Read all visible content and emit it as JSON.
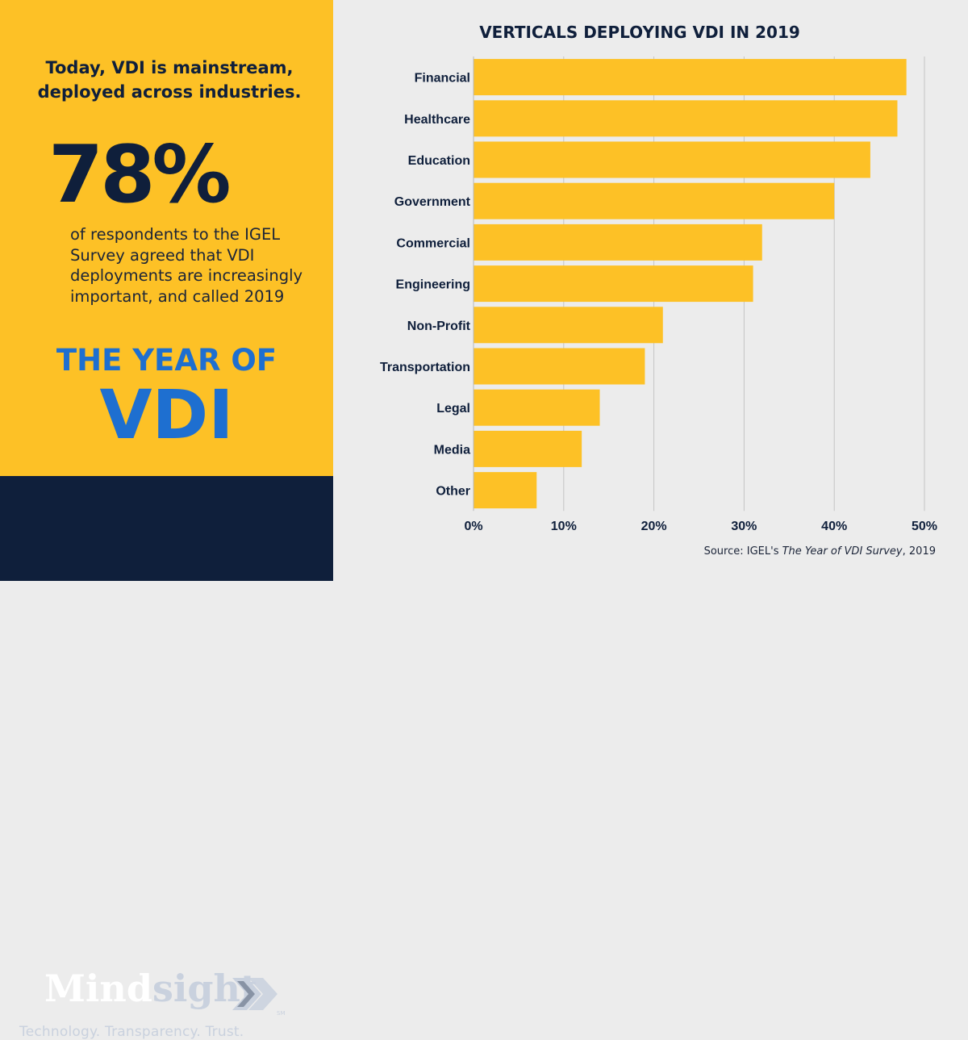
{
  "left_panel": {
    "intro": "Today, VDI is mainstream, deployed across industries.",
    "stat": "78%",
    "description": "of respondents to the IGEL Survey agreed that VDI deployments are increasingly important, and called 2019",
    "year_of": "THE YEAR OF",
    "vdi": "VDI"
  },
  "footer": {
    "logo_part1": "Mind",
    "logo_part2": "sight",
    "logo_mark": "SM",
    "tagline": "Technology. Transparency. Trust."
  },
  "colors": {
    "yellow": "#fdc126",
    "navy": "#0f1f3b",
    "blue": "#1e6fd0",
    "bar": "#fdc126",
    "background": "#ececec"
  },
  "source": {
    "prefix": "Source: IGEL's",
    "title": "The Year of VDI Survey",
    "suffix": ", 2019"
  },
  "chart_data": {
    "type": "bar",
    "orientation": "horizontal",
    "title": "VERTICALS DEPLOYING VDI IN 2019",
    "categories": [
      "Financial",
      "Healthcare",
      "Education",
      "Government",
      "Commercial",
      "Engineering",
      "Non-Profit",
      "Transportation",
      "Legal",
      "Media",
      "Other"
    ],
    "values": [
      48,
      47,
      44,
      40,
      32,
      31,
      21,
      19,
      14,
      12,
      7
    ],
    "xlim": [
      0,
      50
    ],
    "xticks": [
      0,
      10,
      20,
      30,
      40,
      50
    ],
    "tick_labels": [
      "0%",
      "10%",
      "20%",
      "30%",
      "40%",
      "50%"
    ],
    "xlabel": "",
    "ylabel": "",
    "grid": true
  }
}
